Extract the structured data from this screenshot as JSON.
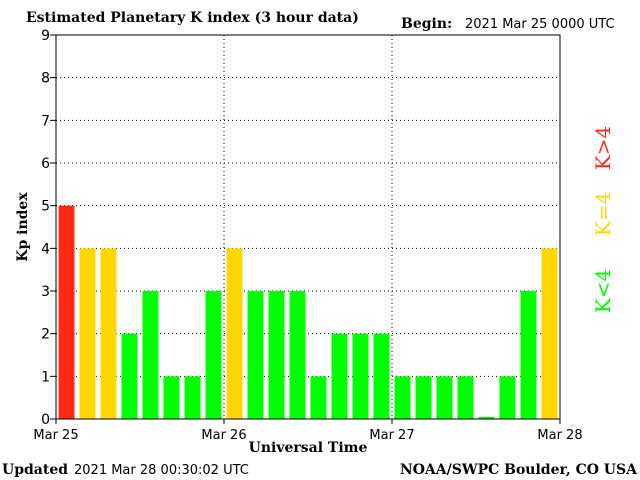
{
  "header": {
    "title": "Estimated Planetary K index (3 hour data)",
    "begin_label": "Begin:",
    "begin_value": "2021 Mar 25 0000 UTC"
  },
  "footer": {
    "updated_label": "Updated",
    "updated_value": "2021 Mar 28 00:30:02 UTC",
    "source": "NOAA/SWPC Boulder, CO USA"
  },
  "legend": {
    "high": "K>4",
    "equal": "K=4",
    "low": "K<4"
  },
  "colors": {
    "high": "#ff2a12",
    "equal": "#ffd700",
    "low": "#00ff00",
    "grid": "#000000"
  },
  "chart_data": {
    "type": "bar",
    "title": "Estimated Planetary K index (3 hour data)",
    "xlabel": "Universal Time",
    "ylabel": "Kp index",
    "ylim": [
      0,
      9
    ],
    "yticks": [
      0,
      1,
      2,
      3,
      4,
      5,
      6,
      7,
      8,
      9
    ],
    "xticks": [
      "Mar 25",
      "Mar 26",
      "Mar 27",
      "Mar 28"
    ],
    "grid": true,
    "legend_position": "right",
    "series": [
      {
        "values": [
          5,
          4,
          4,
          2,
          3,
          1,
          1,
          3,
          4,
          3,
          3,
          3,
          1,
          2,
          2,
          2,
          1,
          1,
          1,
          1,
          0.05,
          1,
          3,
          4
        ]
      }
    ]
  }
}
